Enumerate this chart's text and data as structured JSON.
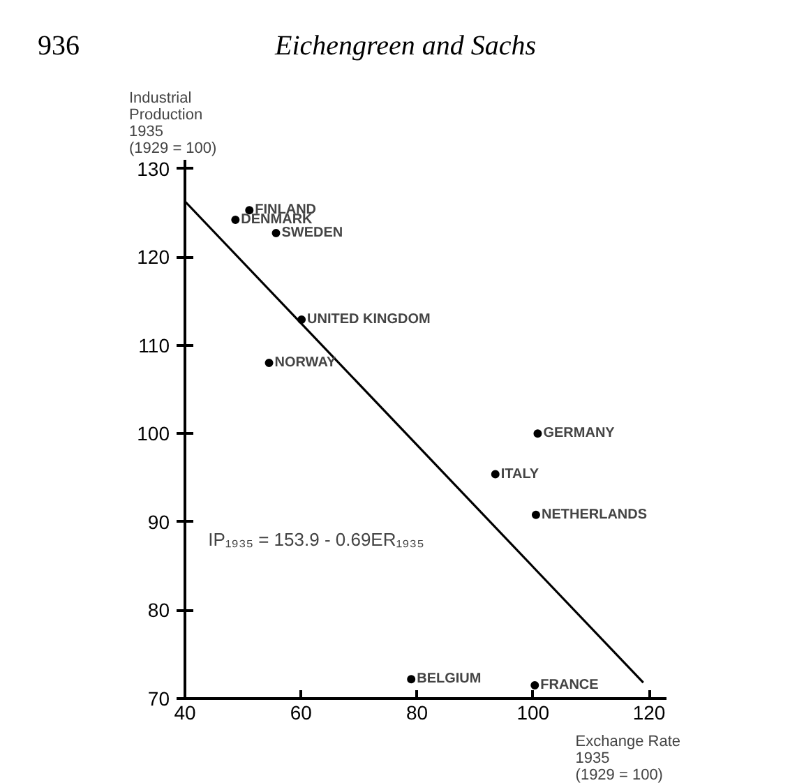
{
  "chart_data": {
    "type": "scatter",
    "title": "Eichengreen and Sachs",
    "xlabel": "Exchange Rate\n1935\n(1929 = 100)",
    "ylabel": "Industrial\nProduction\n1935\n(1929 = 100)",
    "xlim": [
      40,
      123
    ],
    "ylim": [
      70,
      131
    ],
    "xticks": [
      40,
      60,
      80,
      100,
      120
    ],
    "yticks": [
      70,
      80,
      90,
      100,
      110,
      120,
      130
    ],
    "series": [
      {
        "marker": "circle",
        "color": "#000000",
        "x": [
          51.1,
          48.7,
          55.7,
          60.1,
          54.5,
          100.8,
          93.5,
          100.5,
          79.0,
          100.3
        ],
        "values": [
          125.3,
          124.2,
          122.7,
          112.9,
          108.0,
          100.0,
          95.4,
          90.8,
          72.2,
          71.5
        ]
      },
      {
        "type": "line",
        "marker": "none",
        "color": "#000000",
        "line_style": "solid",
        "x": [
          40,
          119
        ],
        "values": [
          126.3,
          71.8
        ]
      }
    ],
    "annotations": [
      "936",
      "IP₁₉₃₅ = 153.9 - 0.69ER₁₉₃₅",
      {
        "text": "FINLAND",
        "x": 51.1,
        "y": 125.3
      },
      {
        "text": "DENMARK",
        "x": 48.7,
        "y": 124.2
      },
      {
        "text": "SWEDEN",
        "x": 55.7,
        "y": 122.7
      },
      {
        "text": "UNITED KINGDOM",
        "x": 60.1,
        "y": 112.9
      },
      {
        "text": "NORWAY",
        "x": 54.5,
        "y": 108.0
      },
      {
        "text": "GERMANY",
        "x": 100.8,
        "y": 100.0
      },
      {
        "text": "ITALY",
        "x": 93.5,
        "y": 95.4
      },
      {
        "text": "NETHERLANDS",
        "x": 100.5,
        "y": 90.8
      },
      {
        "text": "BELGIUM",
        "x": 79.0,
        "y": 72.2
      },
      {
        "text": "FRANCE",
        "x": 100.3,
        "y": 71.5
      }
    ]
  }
}
